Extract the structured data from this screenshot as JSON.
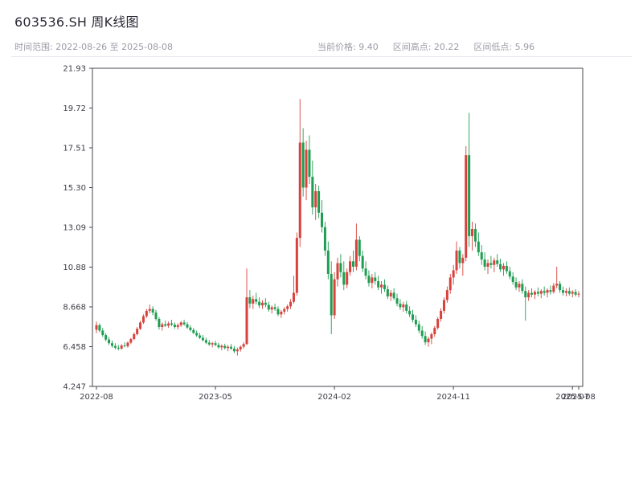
{
  "header": {
    "title": "603536.SH 周K线图",
    "time_range": "时间范围: 2022-08-26 至 2025-08-08",
    "stats": [
      "当前价格: 9.40",
      "区间高点: 20.22",
      "区间低点: 5.96"
    ]
  },
  "colors": {
    "title_text": "#2b2b38",
    "subtitle_text": "#9b9ba6",
    "axis": "#45454f",
    "tick_text": "#3c3c46",
    "background": "#ffffff"
  },
  "chart_data": {
    "type": "candlestick",
    "title": "603536.SH 周K线图",
    "symbol": "603536.SH",
    "freq": "weekly",
    "start_date": "2022-08-26",
    "end_date": "2025-08-08",
    "current_price": 9.4,
    "range_high": 20.22,
    "range_low": 5.96,
    "ylim": [
      4.247,
      21.93
    ],
    "y_ticks": [
      "21.93",
      "19.72",
      "17.51",
      "15.30",
      "13.09",
      "10.88",
      "8.668",
      "6.458",
      "4.247"
    ],
    "x_ticks": [
      {
        "label": "2022-08",
        "week": 0
      },
      {
        "label": "2023-05",
        "week": 38
      },
      {
        "label": "2024-02",
        "week": 76
      },
      {
        "label": "2024-11",
        "week": 114
      },
      {
        "label": "2025-07",
        "week": 152
      },
      {
        "label": "2025-08",
        "week": 154
      }
    ],
    "up_color": "#d8413c",
    "down_color": "#1f9d52",
    "legend": "none",
    "grid": false,
    "ohlc": [
      [
        7.4,
        7.85,
        7.2,
        7.65
      ],
      [
        7.65,
        7.75,
        7.25,
        7.35
      ],
      [
        7.35,
        7.5,
        7.0,
        7.1
      ],
      [
        7.1,
        7.2,
        6.75,
        6.85
      ],
      [
        6.85,
        7.0,
        6.55,
        6.65
      ],
      [
        6.65,
        6.8,
        6.4,
        6.5
      ],
      [
        6.5,
        6.65,
        6.3,
        6.4
      ],
      [
        6.4,
        6.55,
        6.25,
        6.35
      ],
      [
        6.35,
        6.6,
        6.28,
        6.52
      ],
      [
        6.52,
        6.7,
        6.42,
        6.48
      ],
      [
        6.48,
        6.75,
        6.4,
        6.68
      ],
      [
        6.68,
        6.95,
        6.6,
        6.88
      ],
      [
        6.88,
        7.25,
        6.82,
        7.15
      ],
      [
        7.15,
        7.55,
        7.08,
        7.45
      ],
      [
        7.45,
        7.9,
        7.38,
        7.8
      ],
      [
        7.8,
        8.25,
        7.72,
        8.15
      ],
      [
        8.15,
        8.55,
        8.05,
        8.45
      ],
      [
        8.45,
        8.8,
        8.3,
        8.55
      ],
      [
        8.55,
        8.7,
        8.2,
        8.35
      ],
      [
        8.35,
        8.5,
        7.9,
        8.0
      ],
      [
        8.0,
        8.1,
        7.4,
        7.55
      ],
      [
        7.55,
        7.8,
        7.35,
        7.7
      ],
      [
        7.7,
        7.9,
        7.55,
        7.62
      ],
      [
        7.62,
        7.85,
        7.5,
        7.75
      ],
      [
        7.75,
        7.95,
        7.6,
        7.68
      ],
      [
        7.68,
        7.8,
        7.45,
        7.55
      ],
      [
        7.55,
        7.75,
        7.42,
        7.65
      ],
      [
        7.65,
        7.88,
        7.55,
        7.8
      ],
      [
        7.8,
        7.95,
        7.62,
        7.7
      ],
      [
        7.7,
        7.82,
        7.45,
        7.52
      ],
      [
        7.52,
        7.65,
        7.3,
        7.38
      ],
      [
        7.38,
        7.5,
        7.15,
        7.22
      ],
      [
        7.22,
        7.35,
        7.0,
        7.08
      ],
      [
        7.08,
        7.22,
        6.88,
        6.95
      ],
      [
        6.95,
        7.1,
        6.75,
        6.82
      ],
      [
        6.82,
        6.95,
        6.6,
        6.68
      ],
      [
        6.68,
        6.82,
        6.5,
        6.58
      ],
      [
        6.58,
        6.72,
        6.42,
        6.65
      ],
      [
        6.65,
        6.78,
        6.48,
        6.55
      ],
      [
        6.55,
        6.68,
        6.35,
        6.42
      ],
      [
        6.42,
        6.58,
        6.25,
        6.5
      ],
      [
        6.5,
        6.62,
        6.3,
        6.38
      ],
      [
        6.38,
        6.55,
        6.2,
        6.45
      ],
      [
        6.45,
        6.6,
        6.28,
        6.35
      ],
      [
        6.35,
        6.5,
        6.1,
        6.2
      ],
      [
        6.2,
        6.4,
        5.96,
        6.3
      ],
      [
        6.3,
        6.52,
        6.18,
        6.45
      ],
      [
        6.45,
        6.7,
        6.35,
        6.6
      ],
      [
        6.6,
        10.8,
        6.55,
        9.2
      ],
      [
        9.2,
        9.6,
        8.6,
        8.85
      ],
      [
        8.85,
        9.3,
        8.55,
        9.1
      ],
      [
        9.1,
        9.45,
        8.8,
        8.95
      ],
      [
        8.95,
        9.2,
        8.6,
        8.75
      ],
      [
        8.75,
        9.05,
        8.55,
        8.9
      ],
      [
        8.9,
        9.15,
        8.65,
        8.78
      ],
      [
        8.78,
        8.95,
        8.4,
        8.52
      ],
      [
        8.52,
        8.75,
        8.3,
        8.65
      ],
      [
        8.65,
        8.85,
        8.45,
        8.55
      ],
      [
        8.55,
        8.7,
        8.15,
        8.25
      ],
      [
        8.25,
        8.5,
        8.05,
        8.4
      ],
      [
        8.4,
        8.65,
        8.25,
        8.55
      ],
      [
        8.55,
        8.8,
        8.4,
        8.7
      ],
      [
        8.7,
        9.1,
        8.55,
        8.95
      ],
      [
        8.95,
        10.4,
        8.85,
        9.45
      ],
      [
        9.45,
        12.8,
        9.3,
        12.5
      ],
      [
        12.5,
        20.22,
        12.0,
        17.8
      ],
      [
        17.8,
        18.6,
        14.8,
        15.3
      ],
      [
        15.3,
        17.9,
        14.6,
        17.4
      ],
      [
        17.4,
        18.2,
        15.5,
        15.9
      ],
      [
        15.9,
        16.8,
        13.8,
        14.2
      ],
      [
        14.2,
        15.5,
        13.5,
        15.1
      ],
      [
        15.1,
        15.4,
        13.6,
        13.9
      ],
      [
        13.9,
        14.6,
        12.8,
        13.1
      ],
      [
        13.1,
        13.4,
        11.5,
        11.8
      ],
      [
        11.8,
        12.3,
        10.2,
        10.5
      ],
      [
        10.5,
        11.2,
        7.15,
        8.2
      ],
      [
        8.2,
        10.6,
        8.0,
        10.2
      ],
      [
        10.2,
        11.4,
        9.8,
        11.1
      ],
      [
        11.1,
        11.6,
        10.3,
        10.6
      ],
      [
        10.6,
        11.2,
        9.6,
        9.9
      ],
      [
        9.9,
        10.8,
        9.7,
        10.6
      ],
      [
        10.6,
        11.5,
        10.4,
        11.2
      ],
      [
        11.2,
        11.8,
        10.6,
        10.9
      ],
      [
        10.9,
        13.3,
        10.7,
        12.4
      ],
      [
        12.4,
        12.6,
        11.2,
        11.5
      ],
      [
        11.5,
        11.8,
        10.6,
        10.8
      ],
      [
        10.8,
        11.2,
        10.2,
        10.4
      ],
      [
        10.4,
        10.7,
        9.8,
        10.0
      ],
      [
        10.0,
        10.5,
        9.7,
        10.3
      ],
      [
        10.3,
        10.6,
        9.9,
        10.1
      ],
      [
        10.1,
        10.4,
        9.6,
        9.75
      ],
      [
        9.75,
        10.1,
        9.4,
        9.9
      ],
      [
        9.9,
        10.2,
        9.5,
        9.65
      ],
      [
        9.65,
        9.85,
        9.1,
        9.25
      ],
      [
        9.25,
        9.6,
        9.0,
        9.45
      ],
      [
        9.45,
        9.7,
        9.05,
        9.15
      ],
      [
        9.15,
        9.4,
        8.7,
        8.85
      ],
      [
        8.85,
        9.1,
        8.5,
        8.65
      ],
      [
        8.65,
        8.95,
        8.4,
        8.8
      ],
      [
        8.8,
        9.0,
        8.3,
        8.45
      ],
      [
        8.45,
        8.7,
        8.1,
        8.25
      ],
      [
        8.25,
        8.5,
        7.8,
        7.95
      ],
      [
        7.95,
        8.2,
        7.55,
        7.7
      ],
      [
        7.7,
        7.9,
        7.2,
        7.35
      ],
      [
        7.35,
        7.6,
        6.9,
        7.05
      ],
      [
        7.05,
        7.3,
        6.55,
        6.7
      ],
      [
        6.7,
        7.0,
        6.45,
        6.9
      ],
      [
        6.9,
        7.25,
        6.6,
        7.15
      ],
      [
        7.15,
        7.6,
        7.0,
        7.5
      ],
      [
        7.5,
        8.1,
        7.4,
        8.0
      ],
      [
        8.0,
        8.6,
        7.85,
        8.45
      ],
      [
        8.45,
        9.2,
        8.3,
        9.05
      ],
      [
        9.05,
        9.8,
        8.9,
        9.6
      ],
      [
        9.6,
        10.5,
        9.4,
        10.3
      ],
      [
        10.3,
        11.0,
        9.9,
        10.7
      ],
      [
        10.7,
        12.3,
        10.5,
        11.8
      ],
      [
        11.8,
        12.0,
        10.8,
        11.1
      ],
      [
        11.1,
        11.6,
        10.4,
        11.4
      ],
      [
        11.4,
        17.6,
        11.2,
        17.1
      ],
      [
        17.1,
        19.45,
        12.0,
        12.6
      ],
      [
        12.6,
        13.4,
        11.8,
        13.0
      ],
      [
        13.0,
        13.3,
        12.0,
        12.3
      ],
      [
        12.3,
        12.8,
        11.5,
        11.7
      ],
      [
        11.7,
        12.1,
        11.0,
        11.3
      ],
      [
        11.3,
        11.7,
        10.7,
        10.9
      ],
      [
        10.9,
        11.3,
        10.5,
        11.1
      ],
      [
        11.1,
        11.5,
        10.8,
        11.0
      ],
      [
        11.0,
        11.4,
        10.6,
        11.25
      ],
      [
        11.25,
        11.6,
        10.9,
        11.05
      ],
      [
        11.05,
        11.35,
        10.6,
        10.75
      ],
      [
        10.75,
        11.1,
        10.4,
        10.95
      ],
      [
        10.95,
        11.2,
        10.5,
        10.65
      ],
      [
        10.65,
        10.9,
        10.2,
        10.35
      ],
      [
        10.35,
        10.6,
        9.9,
        10.05
      ],
      [
        10.05,
        10.3,
        9.6,
        9.75
      ],
      [
        9.75,
        10.1,
        9.5,
        9.95
      ],
      [
        9.95,
        10.2,
        9.4,
        9.55
      ],
      [
        9.55,
        9.8,
        7.9,
        9.2
      ],
      [
        9.2,
        9.6,
        9.0,
        9.45
      ],
      [
        9.45,
        9.7,
        9.2,
        9.35
      ],
      [
        9.35,
        9.6,
        9.1,
        9.5
      ],
      [
        9.5,
        9.75,
        9.25,
        9.4
      ],
      [
        9.4,
        9.65,
        9.15,
        9.55
      ],
      [
        9.55,
        9.8,
        9.3,
        9.45
      ],
      [
        9.45,
        9.7,
        9.2,
        9.6
      ],
      [
        9.6,
        9.85,
        9.35,
        9.5
      ],
      [
        9.5,
        10.0,
        9.4,
        9.85
      ],
      [
        9.85,
        10.9,
        9.7,
        9.95
      ],
      [
        9.95,
        10.1,
        9.45,
        9.6
      ],
      [
        9.6,
        9.8,
        9.3,
        9.45
      ],
      [
        9.45,
        9.7,
        9.25,
        9.55
      ],
      [
        9.55,
        9.75,
        9.3,
        9.4
      ],
      [
        9.4,
        9.6,
        9.2,
        9.5
      ],
      [
        9.5,
        9.65,
        9.25,
        9.35
      ],
      [
        9.35,
        9.55,
        9.2,
        9.4
      ]
    ]
  }
}
